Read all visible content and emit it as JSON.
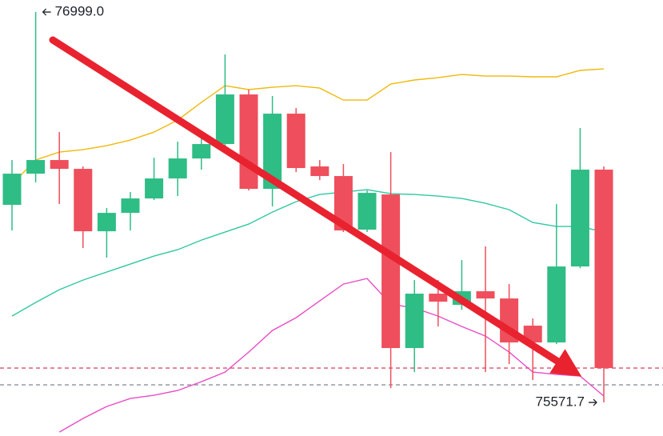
{
  "chart_data": {
    "type": "candlestick",
    "ylim": [
      75449,
      77043
    ],
    "colors": {
      "up": "#2ebd85",
      "down": "#ef4e5c"
    },
    "open": [
      76294.1,
      76408.1,
      76457.9,
      76425.7,
      76197.5,
      76264.8,
      76317.5,
      76390.6,
      76463.7,
      76516.4,
      76697.7,
      76352.6,
      76627.5,
      76434.5,
      76399.4,
      76203.4,
      76332.1,
      75770.5,
      75969.4,
      75928.4,
      75978.2,
      75951.8,
      75852.4,
      75791.0,
      76068.8,
      76422.8
    ],
    "high": [
      76457.9,
      76999.0,
      76560.2,
      76434.5,
      76282.4,
      76340.9,
      76466.6,
      76525.1,
      76545.6,
      76844.0,
      76715.3,
      76691.9,
      76648.0,
      76457.9,
      76443.2,
      76346.7,
      76487.1,
      76019.1,
      76019.1,
      76092.2,
      76142.0,
      76004.5,
      75878.7,
      76297.0,
      76574.9,
      76434.5
    ],
    "low": [
      76200.5,
      76376.0,
      76297.0,
      76136.1,
      76101.0,
      76200.5,
      76311.6,
      76326.2,
      76422.8,
      76501.7,
      76346.7,
      76288.2,
      76414.0,
      76384.7,
      76194.6,
      76194.6,
      75624.2,
      75682.7,
      75849.5,
      75910.9,
      75682.7,
      75712.0,
      75653.5,
      75785.1,
      76063.0,
      75571.7
    ],
    "close": [
      76408.1,
      76457.9,
      76425.7,
      76197.5,
      76264.8,
      76317.5,
      76390.6,
      76463.7,
      76516.4,
      76697.7,
      76352.6,
      76627.5,
      76428.6,
      76399.4,
      76200.5,
      76337.9,
      75770.5,
      75969.4,
      75940.1,
      75978.2,
      75951.8,
      75791.0,
      75791.0,
      76068.8,
      76422.8,
      75697.4
    ],
    "lines": [
      {
        "color": "#f0b90b",
        "values": [
          76370.1,
          76457.9,
          76487.1,
          76495.9,
          76510.5,
          76531.0,
          76560.2,
          76604.1,
          76668.5,
          76729.9,
          76715.3,
          76724.0,
          76729.9,
          76721.1,
          76677.2,
          76677.2,
          76735.7,
          76750.4,
          76759.1,
          76770.8,
          76765.0,
          76765.0,
          76762.1,
          76762.1,
          76785.5,
          76791.3
        ]
      },
      {
        "color": "#31c8a0",
        "values": [
          75887.5,
          75937.2,
          75984.0,
          76019.1,
          76048.4,
          76077.6,
          76106.9,
          76130.3,
          76165.4,
          76194.6,
          76223.9,
          76267.7,
          76305.8,
          76332.1,
          76340.9,
          76349.6,
          76335.0,
          76332.1,
          76326.2,
          76317.5,
          76299.9,
          76276.5,
          76229.7,
          76215.1,
          76215.1,
          76194.6
        ]
      },
      {
        "color": "#e84cc5",
        "values": [
          null,
          null,
          75463.4,
          75513.1,
          75557.0,
          75586.2,
          75597.9,
          75615.5,
          75647.6,
          75682.7,
          75755.9,
          75834.8,
          75881.6,
          75943.1,
          76004.5,
          76025.0,
          75931.4,
          75916.7,
          75887.5,
          75849.5,
          75814.4,
          75755.9,
          75682.7,
          75674.0,
          75668.1,
          75595.0
        ]
      }
    ],
    "price_lines": [
      {
        "value": 75697.4,
        "color": "#d9506a"
      },
      {
        "value": 75636.0,
        "color": "#8a8f99"
      }
    ],
    "annotations": [
      {
        "value": 76999.0,
        "label": "76999.0",
        "index": 1,
        "side": "right"
      },
      {
        "value": 75571.7,
        "label": "75571.7",
        "index": 25,
        "side": "left"
      }
    ]
  }
}
